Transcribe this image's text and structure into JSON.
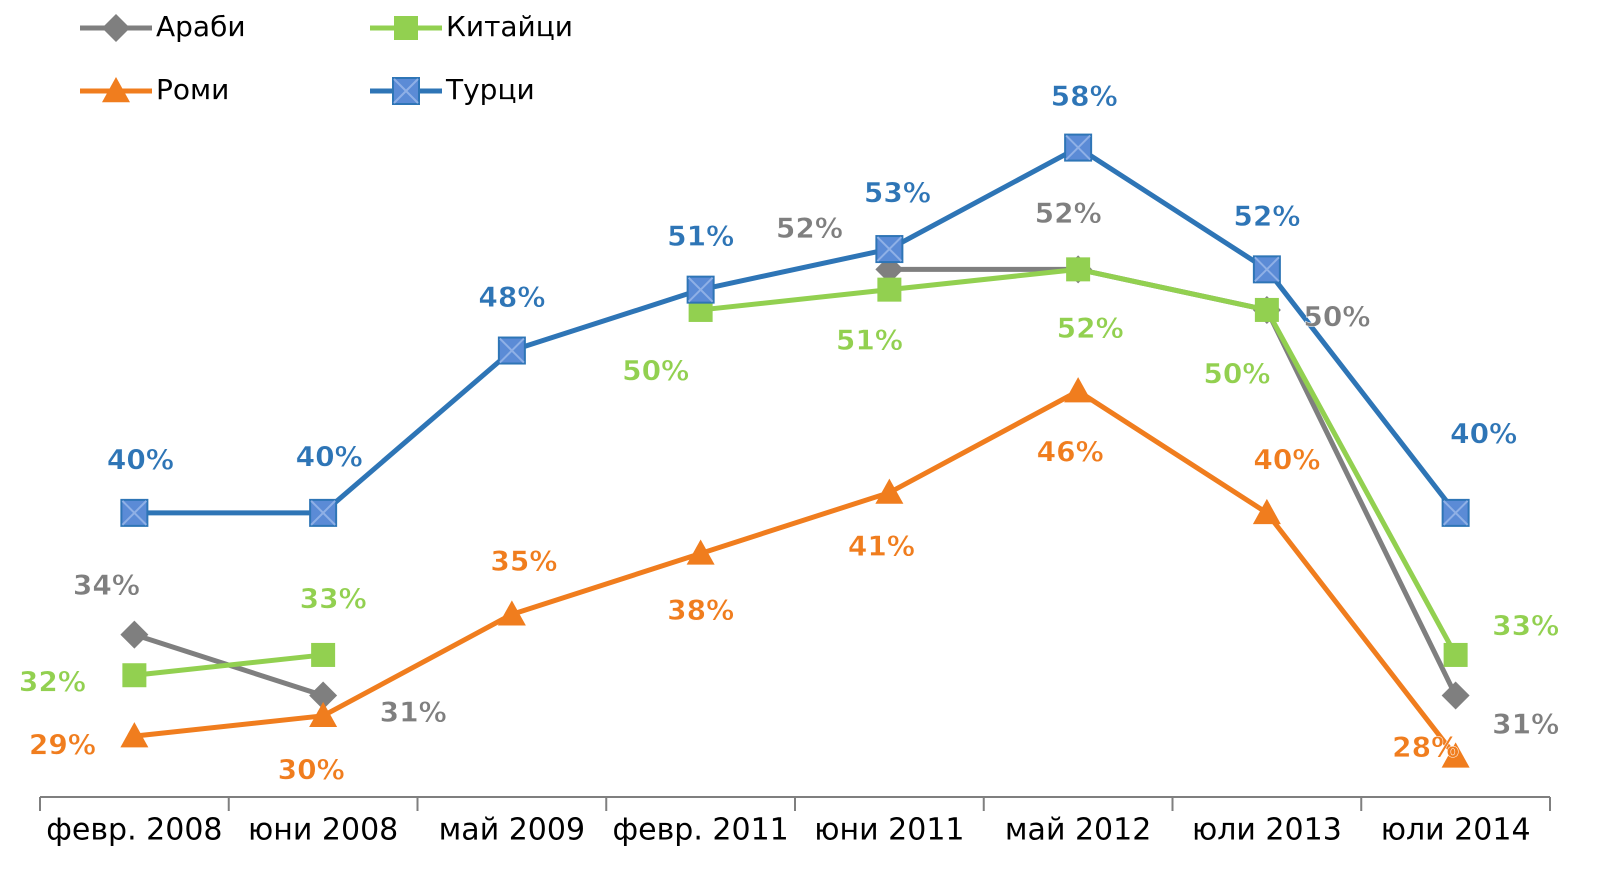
{
  "chart_data": {
    "type": "line",
    "categories": [
      "февр. 2008",
      "юни 2008",
      "май 2009",
      "февр. 2011",
      "юни 2011",
      "май 2012",
      "юли 2013",
      "юли 2014"
    ],
    "ylim": [
      26,
      60
    ],
    "legend": "top-left",
    "series": [
      {
        "name": "Араби",
        "color": "#7f7f7f",
        "marker": "diamond",
        "values": [
          34,
          31,
          null,
          null,
          52,
          52,
          50,
          31
        ],
        "value_labels": [
          "34%",
          "31%",
          null,
          null,
          "52%",
          "52%",
          "50%",
          "31%"
        ]
      },
      {
        "name": "Китайци",
        "color": "#92d050",
        "marker": "square",
        "values": [
          32,
          33,
          null,
          50,
          51,
          52,
          50,
          33
        ],
        "value_labels": [
          "32%",
          "33%",
          null,
          "50%",
          "51%",
          "52%",
          "50%",
          "33%"
        ]
      },
      {
        "name": "Роми",
        "color": "#f07d1e",
        "marker": "triangle",
        "values": [
          29,
          30,
          35,
          38,
          41,
          46,
          40,
          28
        ],
        "value_labels": [
          "29%",
          "30%",
          "35%",
          "38%",
          "41%",
          "46%",
          "40%",
          "28%"
        ]
      },
      {
        "name": "Турци",
        "color": "#2e75b6",
        "marker": "xsquare",
        "values": [
          40,
          40,
          48,
          51,
          53,
          58,
          52,
          40
        ],
        "value_labels": [
          "40%",
          "40%",
          "48%",
          "51%",
          "53%",
          "58%",
          "52%",
          "40%"
        ]
      }
    ]
  }
}
